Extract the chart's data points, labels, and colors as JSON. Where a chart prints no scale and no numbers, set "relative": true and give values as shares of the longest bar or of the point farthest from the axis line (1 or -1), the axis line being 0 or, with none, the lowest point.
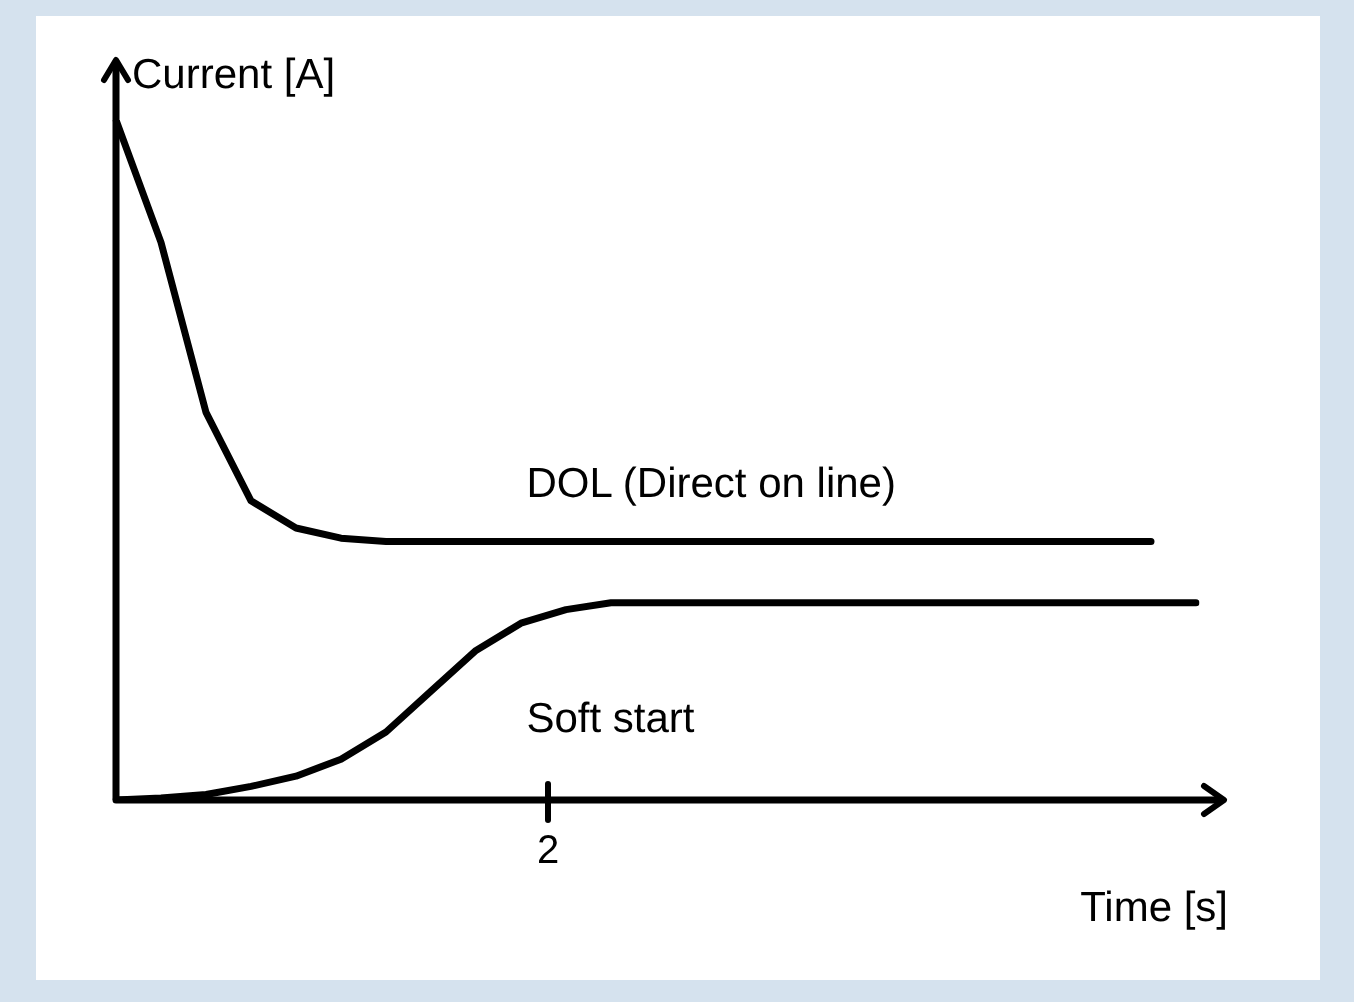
{
  "chart_data": {
    "type": "line",
    "relative": true,
    "ylabel": "Current [A]",
    "xlabel": "Time [s]",
    "annotations": [
      "2"
    ],
    "legend": false,
    "marker": "none",
    "line_style": "solid",
    "categories": [
      null,
      null,
      null,
      null,
      null,
      null,
      null,
      null,
      null,
      null,
      null,
      null,
      null,
      null,
      null,
      null,
      null,
      null,
      null,
      null,
      null,
      null,
      null,
      null,
      null
    ],
    "series": [
      {
        "name": "DOL (Direct on line)",
        "color": "#000000",
        "values": [
          1.0,
          0.82,
          0.57,
          0.44,
          0.4,
          0.385,
          0.38,
          0.38,
          0.38,
          0.38,
          0.38,
          0.38,
          0.38,
          0.38,
          0.38,
          0.38,
          0.38,
          0.38,
          0.38,
          0.38,
          0.38,
          0.38,
          0.38,
          0.38,
          null
        ]
      },
      {
        "name": "Soft start",
        "color": "#000000",
        "values": [
          0,
          0.003,
          0.008,
          0.02,
          0.035,
          0.06,
          0.1,
          0.16,
          0.22,
          0.26,
          0.28,
          0.29,
          0.29,
          0.29,
          0.29,
          0.29,
          0.29,
          0.29,
          0.29,
          0.29,
          0.29,
          0.29,
          0.29,
          0.29,
          0.29
        ]
      }
    ]
  }
}
